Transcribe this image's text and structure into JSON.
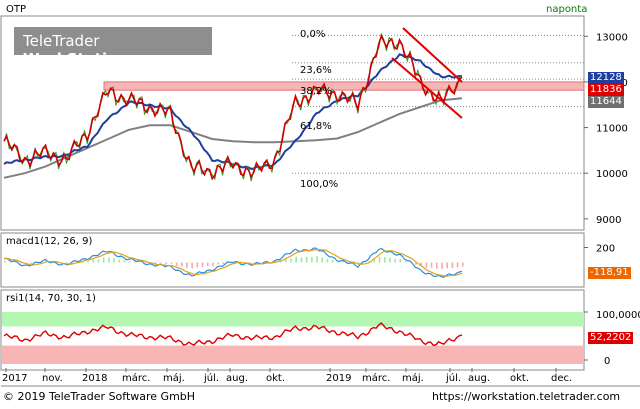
{
  "header": {
    "symbol": "OTP",
    "period": "naponta",
    "watermark_light": "TeleTrader ",
    "watermark_bold": "WorkStation"
  },
  "panels": {
    "macd": {
      "label": "macd1(12, 26, 9)"
    },
    "rsi": {
      "label": "rsi1(14, 70, 30, 1)"
    }
  },
  "value_tags": {
    "ma_blue": "12128",
    "ma_red": "11836",
    "ma_grey": "11644",
    "macd": "-118,91",
    "rsi_upper": "100,0000",
    "rsi_value": "52,2202"
  },
  "fib_labels": [
    "0,0%",
    "23,6%",
    "38,2%",
    "61,8%",
    "100,0%"
  ],
  "x_labels": [
    "2017",
    "nov.",
    "2018",
    "márc.",
    "máj.",
    "júl.",
    "aug.",
    "okt.",
    "2019",
    "márc.",
    "máj.",
    "júl.",
    "aug.",
    "okt.",
    "dec."
  ],
  "footer": {
    "copyright": "© 2019 TeleTrader Software GmbH",
    "url": "https://workstation.teletrader.com"
  },
  "colors": {
    "price": "#cc0000",
    "ma_fast": "#1f3fa0",
    "ma_slow": "#808080",
    "resistance_band": "#f7b5b5",
    "rsi_overbought_band": "#b3f7b3",
    "rsi_oversold_band": "#f7b5b5",
    "macd_hist_positive": "#9ee89e",
    "macd_hist_negative": "#f5a8a8"
  },
  "chart_data": [
    {
      "type": "line",
      "title": "OTP",
      "ylim": [
        8800,
        13400
      ],
      "y_ticks": [
        9000,
        10000,
        11000,
        12000,
        13000
      ],
      "x": [
        "2017-09",
        "2017-10",
        "2017-11",
        "2017-12",
        "2018-01",
        "2018-02",
        "2018-03",
        "2018-04",
        "2018-05",
        "2018-06",
        "2018-07",
        "2018-08",
        "2018-09",
        "2018-10",
        "2018-11",
        "2018-12",
        "2019-01",
        "2019-02",
        "2019-03",
        "2019-04",
        "2019-05",
        "2019-06",
        "2019-07"
      ],
      "series": [
        {
          "values": [
            10700,
            10300,
            10450,
            10300,
            10900,
            11800,
            11600,
            11450,
            11300,
            10100,
            10050,
            10200,
            10000,
            10300,
            11550,
            11800,
            11750,
            11500,
            12800,
            12900,
            12000,
            11550,
            12100
          ]
        },
        {
          "values": [
            10200,
            10300,
            10350,
            10400,
            10600,
            11200,
            11550,
            11500,
            11400,
            10900,
            10300,
            10200,
            10100,
            10200,
            10700,
            11300,
            11600,
            11700,
            12200,
            12600,
            12450,
            12100,
            12128
          ]
        },
        {
          "values": [
            9900,
            10000,
            10150,
            10350,
            10550,
            10750,
            10950,
            11050,
            11050,
            10900,
            10750,
            10700,
            10680,
            10680,
            10700,
            10720,
            10760,
            10900,
            11100,
            11300,
            11450,
            11600,
            11644
          ]
        }
      ],
      "fibonacci_levels": [
        13020,
        12420,
        12060,
        11460,
        10000
      ],
      "resistance_band": [
        11820,
        12000
      ]
    },
    {
      "type": "line",
      "title": "macd1(12, 26, 9)",
      "ylim": [
        -300,
        300
      ],
      "y_ticks": [
        200
      ],
      "values": [
        50,
        -40,
        20,
        -30,
        60,
        150,
        40,
        -20,
        -60,
        -180,
        -90,
        10,
        -30,
        20,
        160,
        180,
        40,
        -50,
        170,
        110,
        -110,
        -200,
        -118.91
      ]
    },
    {
      "type": "line",
      "title": "rsi1(14, 70, 30, 1)",
      "ylim": [
        0,
        100
      ],
      "y_ticks": [
        0,
        100
      ],
      "upper_band": 70,
      "lower_band": 30,
      "values": [
        50,
        42,
        55,
        47,
        60,
        68,
        52,
        48,
        45,
        32,
        40,
        52,
        45,
        48,
        66,
        68,
        58,
        48,
        72,
        60,
        40,
        32,
        52.2202
      ]
    }
  ]
}
